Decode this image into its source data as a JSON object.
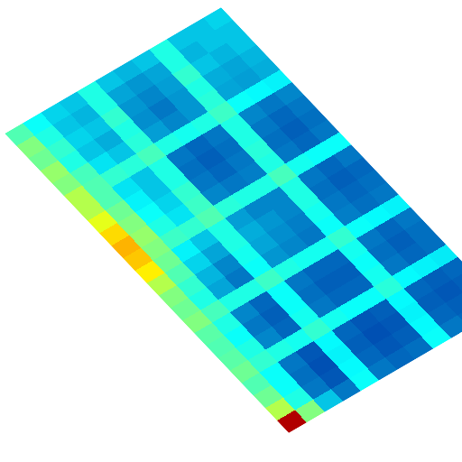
{
  "chart_data": {
    "type": "heatmap",
    "tick_labels": false,
    "zlim": [
      0,
      1
    ],
    "z": [
      [
        0.45,
        0.38,
        0.32,
        0.3,
        0.4,
        0.3,
        0.28,
        0.3,
        0.4,
        0.3,
        0.3,
        0.32
      ],
      [
        0.5,
        0.4,
        0.3,
        0.28,
        0.4,
        0.26,
        0.24,
        0.26,
        0.4,
        0.28,
        0.3,
        0.3
      ],
      [
        0.48,
        0.42,
        0.32,
        0.3,
        0.42,
        0.24,
        0.22,
        0.25,
        0.42,
        0.3,
        0.28,
        0.3
      ],
      [
        0.52,
        0.4,
        0.3,
        0.27,
        0.4,
        0.23,
        0.2,
        0.24,
        0.4,
        0.27,
        0.26,
        0.28
      ],
      [
        0.5,
        0.44,
        0.34,
        0.3,
        0.41,
        0.25,
        0.22,
        0.24,
        0.41,
        0.26,
        0.25,
        0.27
      ],
      [
        0.55,
        0.45,
        0.42,
        0.41,
        0.44,
        0.4,
        0.39,
        0.4,
        0.43,
        0.38,
        0.37,
        0.36
      ],
      [
        0.55,
        0.45,
        0.34,
        0.3,
        0.4,
        0.2,
        0.18,
        0.2,
        0.4,
        0.22,
        0.2,
        0.22
      ],
      [
        0.6,
        0.48,
        0.36,
        0.3,
        0.4,
        0.19,
        0.17,
        0.19,
        0.4,
        0.2,
        0.18,
        0.2
      ],
      [
        0.66,
        0.5,
        0.38,
        0.32,
        0.42,
        0.2,
        0.18,
        0.2,
        0.41,
        0.19,
        0.17,
        0.19
      ],
      [
        0.7,
        0.52,
        0.4,
        0.34,
        0.43,
        0.22,
        0.2,
        0.21,
        0.4,
        0.2,
        0.18,
        0.2
      ],
      [
        0.68,
        0.5,
        0.43,
        0.42,
        0.45,
        0.41,
        0.4,
        0.4,
        0.44,
        0.39,
        0.38,
        0.38
      ],
      [
        0.64,
        0.48,
        0.36,
        0.3,
        0.4,
        0.25,
        0.22,
        0.22,
        0.4,
        0.2,
        0.18,
        0.2
      ],
      [
        0.55,
        0.45,
        0.32,
        0.26,
        0.4,
        0.27,
        0.24,
        0.22,
        0.4,
        0.19,
        0.17,
        0.18
      ],
      [
        0.5,
        0.42,
        0.28,
        0.22,
        0.39,
        0.26,
        0.23,
        0.21,
        0.39,
        0.2,
        0.18,
        0.19
      ],
      [
        0.48,
        0.4,
        0.26,
        0.2,
        0.38,
        0.24,
        0.22,
        0.2,
        0.38,
        0.21,
        0.19,
        0.2
      ],
      [
        0.5,
        0.44,
        0.4,
        0.4,
        0.43,
        0.4,
        0.39,
        0.39,
        0.42,
        0.38,
        0.37,
        0.36
      ],
      [
        0.46,
        0.4,
        0.22,
        0.18,
        0.38,
        0.2,
        0.18,
        0.18,
        0.39,
        0.2,
        0.18,
        0.2
      ],
      [
        0.45,
        0.38,
        0.2,
        0.17,
        0.38,
        0.19,
        0.17,
        0.17,
        0.38,
        0.19,
        0.17,
        0.19
      ],
      [
        0.46,
        0.4,
        0.22,
        0.18,
        0.39,
        0.2,
        0.18,
        0.18,
        0.39,
        0.2,
        0.18,
        0.19
      ],
      [
        0.48,
        0.42,
        0.4,
        0.39,
        0.42,
        0.39,
        0.38,
        0.38,
        0.41,
        0.37,
        0.36,
        0.35
      ],
      [
        0.45,
        0.38,
        0.2,
        0.16,
        0.37,
        0.18,
        0.16,
        0.17,
        0.37,
        0.18,
        0.17,
        0.18
      ],
      [
        0.48,
        0.38,
        0.19,
        0.15,
        0.36,
        0.17,
        0.15,
        0.16,
        0.36,
        0.17,
        0.16,
        0.17
      ],
      [
        0.55,
        0.4,
        0.2,
        0.16,
        0.37,
        0.18,
        0.16,
        0.17,
        0.37,
        0.18,
        0.17,
        0.18
      ],
      [
        0.95,
        0.5,
        0.3,
        0.2,
        0.38,
        0.2,
        0.18,
        0.19,
        0.38,
        0.2,
        0.18,
        0.2
      ]
    ]
  }
}
